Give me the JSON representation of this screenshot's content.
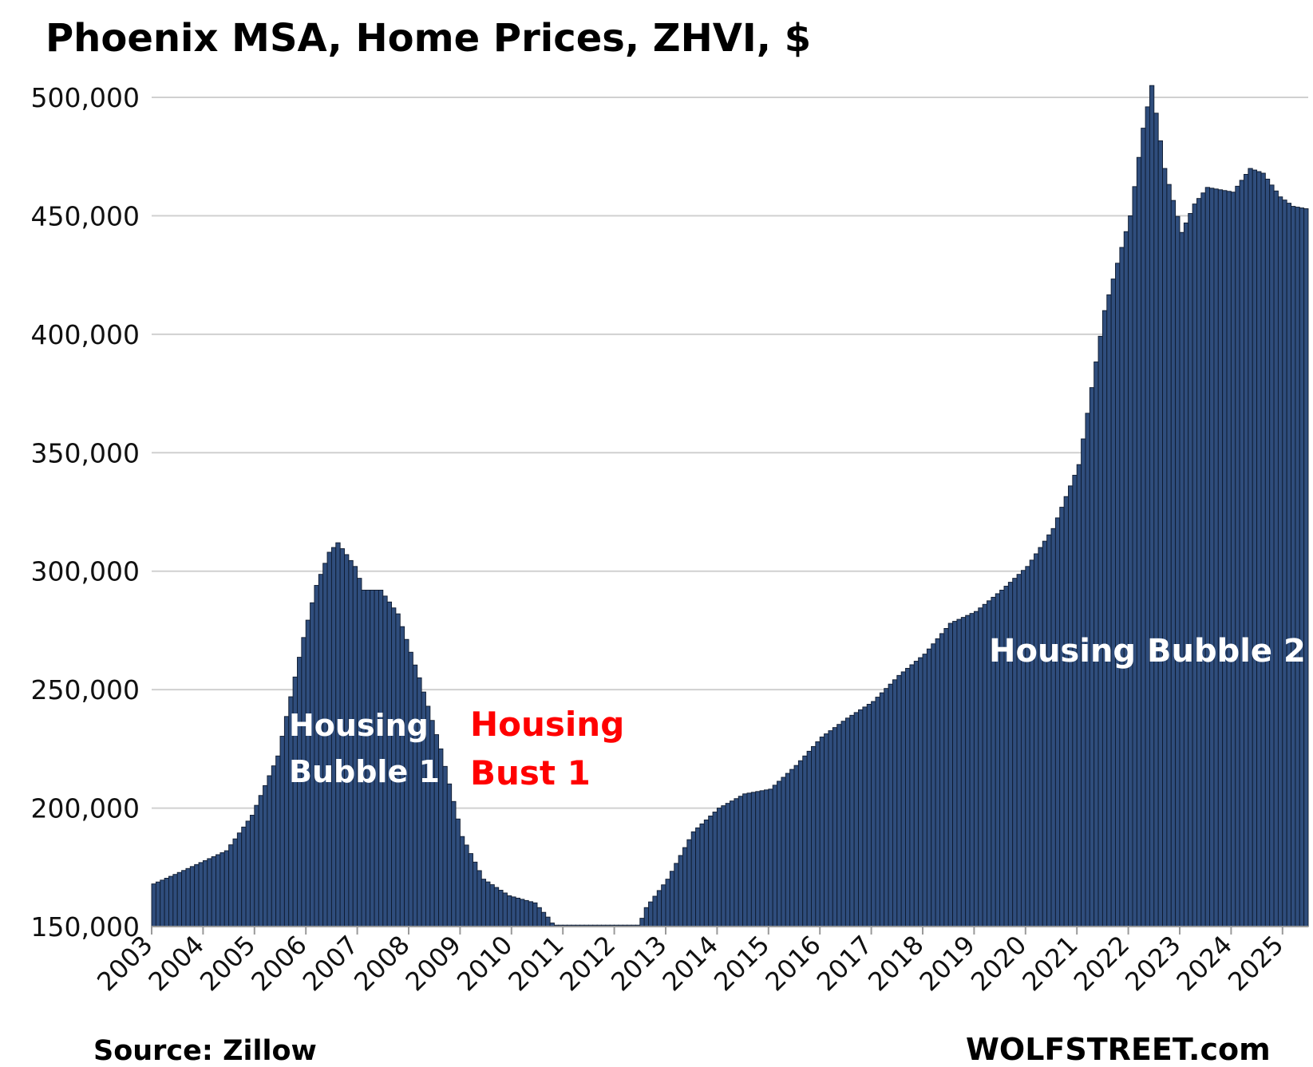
{
  "chart_data": {
    "type": "bar",
    "title": "Phoenix  MSA, Home Prices, ZHVI, $",
    "xlabel": "",
    "ylabel": "",
    "ylim": [
      150000,
      500000
    ],
    "yticks": [
      "150,000",
      "200,000",
      "250,000",
      "300,000",
      "350,000",
      "400,000",
      "450,000",
      "500,000"
    ],
    "ytick_values": [
      150000,
      200000,
      250000,
      300000,
      350000,
      400000,
      450000,
      500000
    ],
    "xticks": [
      "2003",
      "2004",
      "2005",
      "2006",
      "2007",
      "2008",
      "2009",
      "2010",
      "2011",
      "2012",
      "2013",
      "2014",
      "2015",
      "2016",
      "2017",
      "2018",
      "2019",
      "2020",
      "2021",
      "2022",
      "2023",
      "2024",
      "2025"
    ],
    "grid": true,
    "bar_color": "#2f4d7c",
    "frequency": "monthly",
    "start": "2003-01",
    "anchors": [
      [
        "2003-01",
        168000
      ],
      [
        "2003-06",
        172000
      ],
      [
        "2003-12",
        177000
      ],
      [
        "2004-06",
        182000
      ],
      [
        "2004-12",
        197000
      ],
      [
        "2005-06",
        222000
      ],
      [
        "2005-12",
        272000
      ],
      [
        "2006-03",
        294000
      ],
      [
        "2006-06",
        308000
      ],
      [
        "2006-08",
        312000
      ],
      [
        "2006-12",
        302000
      ],
      [
        "2007-02",
        292000
      ],
      [
        "2007-06",
        292000
      ],
      [
        "2007-10",
        282000
      ],
      [
        "2008-03",
        255000
      ],
      [
        "2008-08",
        225000
      ],
      [
        "2009-01",
        188000
      ],
      [
        "2009-06",
        170000
      ],
      [
        "2009-12",
        163000
      ],
      [
        "2010-06",
        160000
      ],
      [
        "2010-09",
        154000
      ],
      [
        "2010-11",
        149000
      ],
      [
        "2012-06",
        149000
      ],
      [
        "2012-08",
        158000
      ],
      [
        "2013-01",
        170000
      ],
      [
        "2013-07",
        190000
      ],
      [
        "2014-01",
        200000
      ],
      [
        "2014-07",
        206000
      ],
      [
        "2015-01",
        208000
      ],
      [
        "2015-07",
        218000
      ],
      [
        "2016-01",
        230000
      ],
      [
        "2016-07",
        238000
      ],
      [
        "2017-01",
        245000
      ],
      [
        "2017-07",
        256000
      ],
      [
        "2018-01",
        265000
      ],
      [
        "2018-07",
        278000
      ],
      [
        "2019-01",
        283000
      ],
      [
        "2019-07",
        292000
      ],
      [
        "2020-01",
        302000
      ],
      [
        "2020-07",
        318000
      ],
      [
        "2021-01",
        345000
      ],
      [
        "2021-07",
        410000
      ],
      [
        "2022-01",
        450000
      ],
      [
        "2022-04",
        487000
      ],
      [
        "2022-06",
        505000
      ],
      [
        "2022-09",
        470000
      ],
      [
        "2023-01",
        443000
      ],
      [
        "2023-04",
        455000
      ],
      [
        "2023-07",
        462000
      ],
      [
        "2024-01",
        460000
      ],
      [
        "2024-05",
        470000
      ],
      [
        "2024-08",
        468000
      ],
      [
        "2024-12",
        458000
      ],
      [
        "2025-03",
        454000
      ],
      [
        "2025-06",
        453000
      ]
    ],
    "annotations": [
      {
        "text": [
          "Housing",
          "Bubble 1"
        ],
        "color": "#ffffff"
      },
      {
        "text": [
          "Housing",
          "Bust 1"
        ],
        "color": "#ff0000"
      },
      {
        "text": [
          "Housing Bubble 2"
        ],
        "color": "#ffffff"
      }
    ],
    "source": "Source: Zillow",
    "watermark": "WOLFSTREET.com"
  }
}
